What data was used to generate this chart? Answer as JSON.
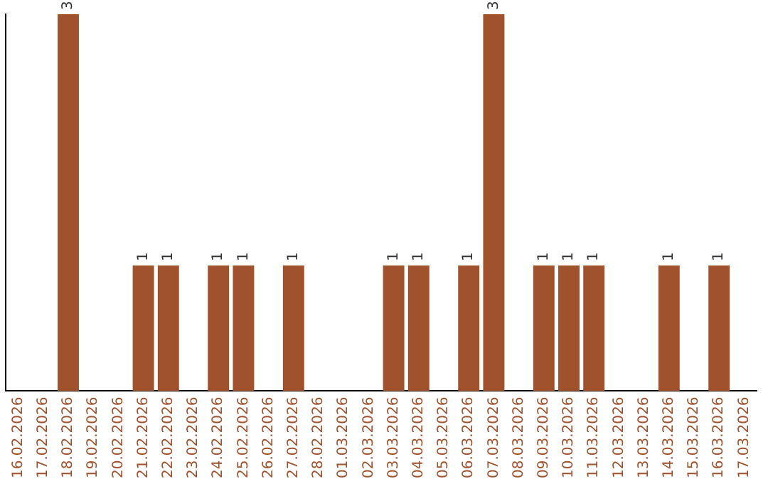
{
  "chart_data": {
    "type": "bar",
    "categories": [
      "16.02.2026",
      "17.02.2026",
      "18.02.2026",
      "19.02.2026",
      "20.02.2026",
      "21.02.2026",
      "22.02.2026",
      "23.02.2026",
      "24.02.2026",
      "25.02.2026",
      "26.02.2026",
      "27.02.2026",
      "28.02.2026",
      "01.03.2026",
      "02.03.2026",
      "03.03.2026",
      "04.03.2026",
      "05.03.2026",
      "06.03.2026",
      "07.03.2026",
      "08.03.2026",
      "09.03.2026",
      "10.03.2026",
      "11.03.2026",
      "12.03.2026",
      "13.03.2026",
      "14.03.2026",
      "15.03.2026",
      "16.03.2026",
      "17.03.2026"
    ],
    "values": [
      null,
      null,
      3,
      null,
      null,
      1,
      1,
      null,
      1,
      1,
      null,
      1,
      null,
      null,
      null,
      1,
      1,
      null,
      1,
      3,
      null,
      1,
      1,
      1,
      null,
      null,
      1,
      null,
      1,
      null
    ],
    "color": "#a0522d",
    "data_labels": true,
    "grid": false,
    "legend": false,
    "tick_labels": "x"
  }
}
